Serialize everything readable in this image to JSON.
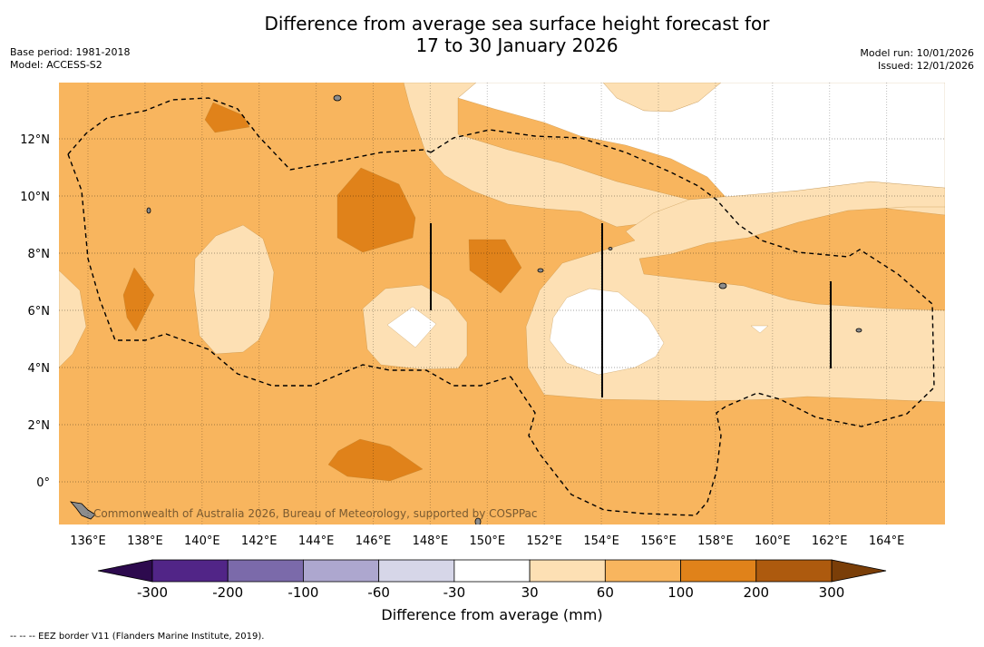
{
  "title": {
    "line1": "Difference from average sea surface height forecast for",
    "line2": "17 to 30 January 2026"
  },
  "meta": {
    "base_period": "Base period: 1981-2018",
    "model": "Model: ACCESS-S2",
    "model_run": "Model run: 10/01/2026",
    "issued": "Issued: 12/01/2026"
  },
  "map": {
    "lon_range": [
      135,
      166
    ],
    "lat_range": [
      -1.5,
      14
    ],
    "lon_ticks": [
      "136°E",
      "138°E",
      "140°E",
      "142°E",
      "144°E",
      "146°E",
      "148°E",
      "150°E",
      "152°E",
      "154°E",
      "156°E",
      "158°E",
      "160°E",
      "162°E",
      "164°E"
    ],
    "lat_ticks": [
      "0°",
      "2°N",
      "4°N",
      "6°N",
      "8°N",
      "10°N",
      "12°N"
    ],
    "attribution": "Commonwealth of Australia 2026, Bureau of Meteorology, supported by COSPPac"
  },
  "colorbar": {
    "ticks": [
      "-300",
      "-200",
      "-100",
      "-60",
      "-30",
      "30",
      "60",
      "100",
      "200",
      "300"
    ],
    "colors": [
      "#512587",
      "#7b6aaa",
      "#ada7cf",
      "#d6d6e8",
      "#ffffff",
      "#fde0b4",
      "#f8b55e",
      "#e0821a",
      "#ad5a0e"
    ],
    "under_color": "#2d0a4e",
    "over_color": "#7a3e08",
    "label": "Difference from average (mm)"
  },
  "footnote": "-- -- -- EEZ border V11 (Flanders Marine Institute, 2019).",
  "colors": {
    "base": "#f8b55e",
    "light": "#fde0b4",
    "dark": "#e0821a",
    "zero": "#ffffff",
    "land": "#8c8c8c"
  }
}
